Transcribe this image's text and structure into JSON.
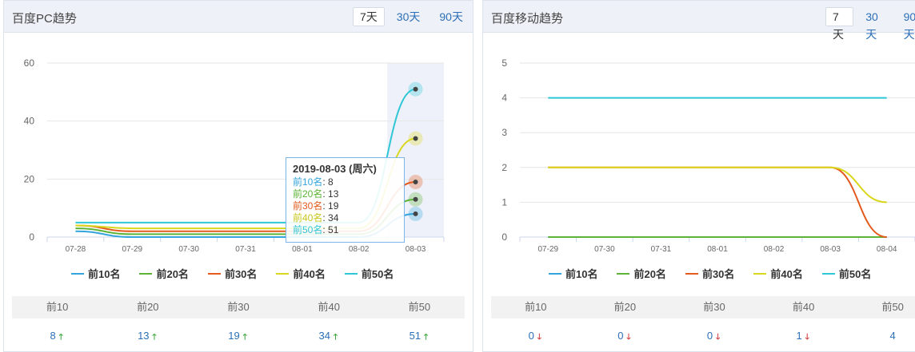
{
  "pc": {
    "title": "百度PC趋势",
    "tabs": [
      "7天",
      "30天",
      "90天"
    ],
    "colors": {
      "s10": "#34a4dc",
      "s20": "#5cb337",
      "s30": "#e4591c",
      "s40": "#d9d71c",
      "s50": "#2fc7d6"
    },
    "legend": [
      "前10名",
      "前20名",
      "前30名",
      "前40名",
      "前50名"
    ],
    "chart_data": {
      "type": "line",
      "title": "百度PC趋势",
      "categories": [
        "07-28",
        "07-29",
        "07-30",
        "07-31",
        "08-01",
        "08-02",
        "08-03"
      ],
      "ylim": [
        0,
        60
      ],
      "yticks": [
        "0",
        "20",
        "40",
        "60"
      ],
      "series": [
        {
          "name": "前10名",
          "values": [
            2,
            0,
            0,
            0,
            0,
            0,
            8
          ]
        },
        {
          "name": "前20名",
          "values": [
            3,
            1,
            1,
            1,
            1,
            1,
            13
          ]
        },
        {
          "name": "前30名",
          "values": [
            4,
            2,
            2,
            2,
            2,
            2,
            19
          ]
        },
        {
          "name": "前40名",
          "values": [
            4,
            3,
            3,
            3,
            3,
            3,
            34
          ]
        },
        {
          "name": "前50名",
          "values": [
            5,
            5,
            5,
            5,
            5,
            5,
            51
          ]
        }
      ]
    },
    "tooltip": {
      "title": "2019-08-03 (周六)",
      "rows": [
        {
          "label": "前10名",
          "value": "8"
        },
        {
          "label": "前20名",
          "value": "13"
        },
        {
          "label": "前30名",
          "value": "19"
        },
        {
          "label": "前40名",
          "value": "34"
        },
        {
          "label": "前50名",
          "value": "51"
        }
      ]
    },
    "stats": {
      "headers": [
        "前10",
        "前20",
        "前30",
        "前40",
        "前50"
      ],
      "values": [
        "8",
        "13",
        "19",
        "34",
        "51"
      ],
      "trend": [
        "up",
        "up",
        "up",
        "up",
        "up"
      ]
    }
  },
  "mobile": {
    "title": "百度移动趋势",
    "tabs": [
      "7天",
      "30天",
      "90天"
    ],
    "legend": [
      "前10名",
      "前20名",
      "前30名",
      "前40名",
      "前50名"
    ],
    "chart_data": {
      "type": "line",
      "title": "百度移动趋势",
      "categories": [
        "07-29",
        "07-30",
        "07-31",
        "08-01",
        "08-02",
        "08-03",
        "08-04"
      ],
      "ylim": [
        0,
        5
      ],
      "yticks": [
        "0",
        "1",
        "2",
        "3",
        "4",
        "5"
      ],
      "series": [
        {
          "name": "前10名",
          "values": [
            0,
            0,
            0,
            0,
            0,
            0,
            0
          ]
        },
        {
          "name": "前20名",
          "values": [
            0,
            0,
            0,
            0,
            0,
            0,
            0
          ]
        },
        {
          "name": "前30名",
          "values": [
            2,
            2,
            2,
            2,
            2,
            2,
            0
          ]
        },
        {
          "name": "前40名",
          "values": [
            2,
            2,
            2,
            2,
            2,
            2,
            1
          ]
        },
        {
          "name": "前50名",
          "values": [
            4,
            4,
            4,
            4,
            4,
            4,
            4
          ]
        }
      ]
    },
    "stats": {
      "headers": [
        "前10",
        "前20",
        "前30",
        "前40",
        "前50"
      ],
      "values": [
        "0",
        "0",
        "0",
        "1",
        "4"
      ],
      "trend": [
        "down",
        "down",
        "down",
        "down",
        "none"
      ]
    }
  }
}
